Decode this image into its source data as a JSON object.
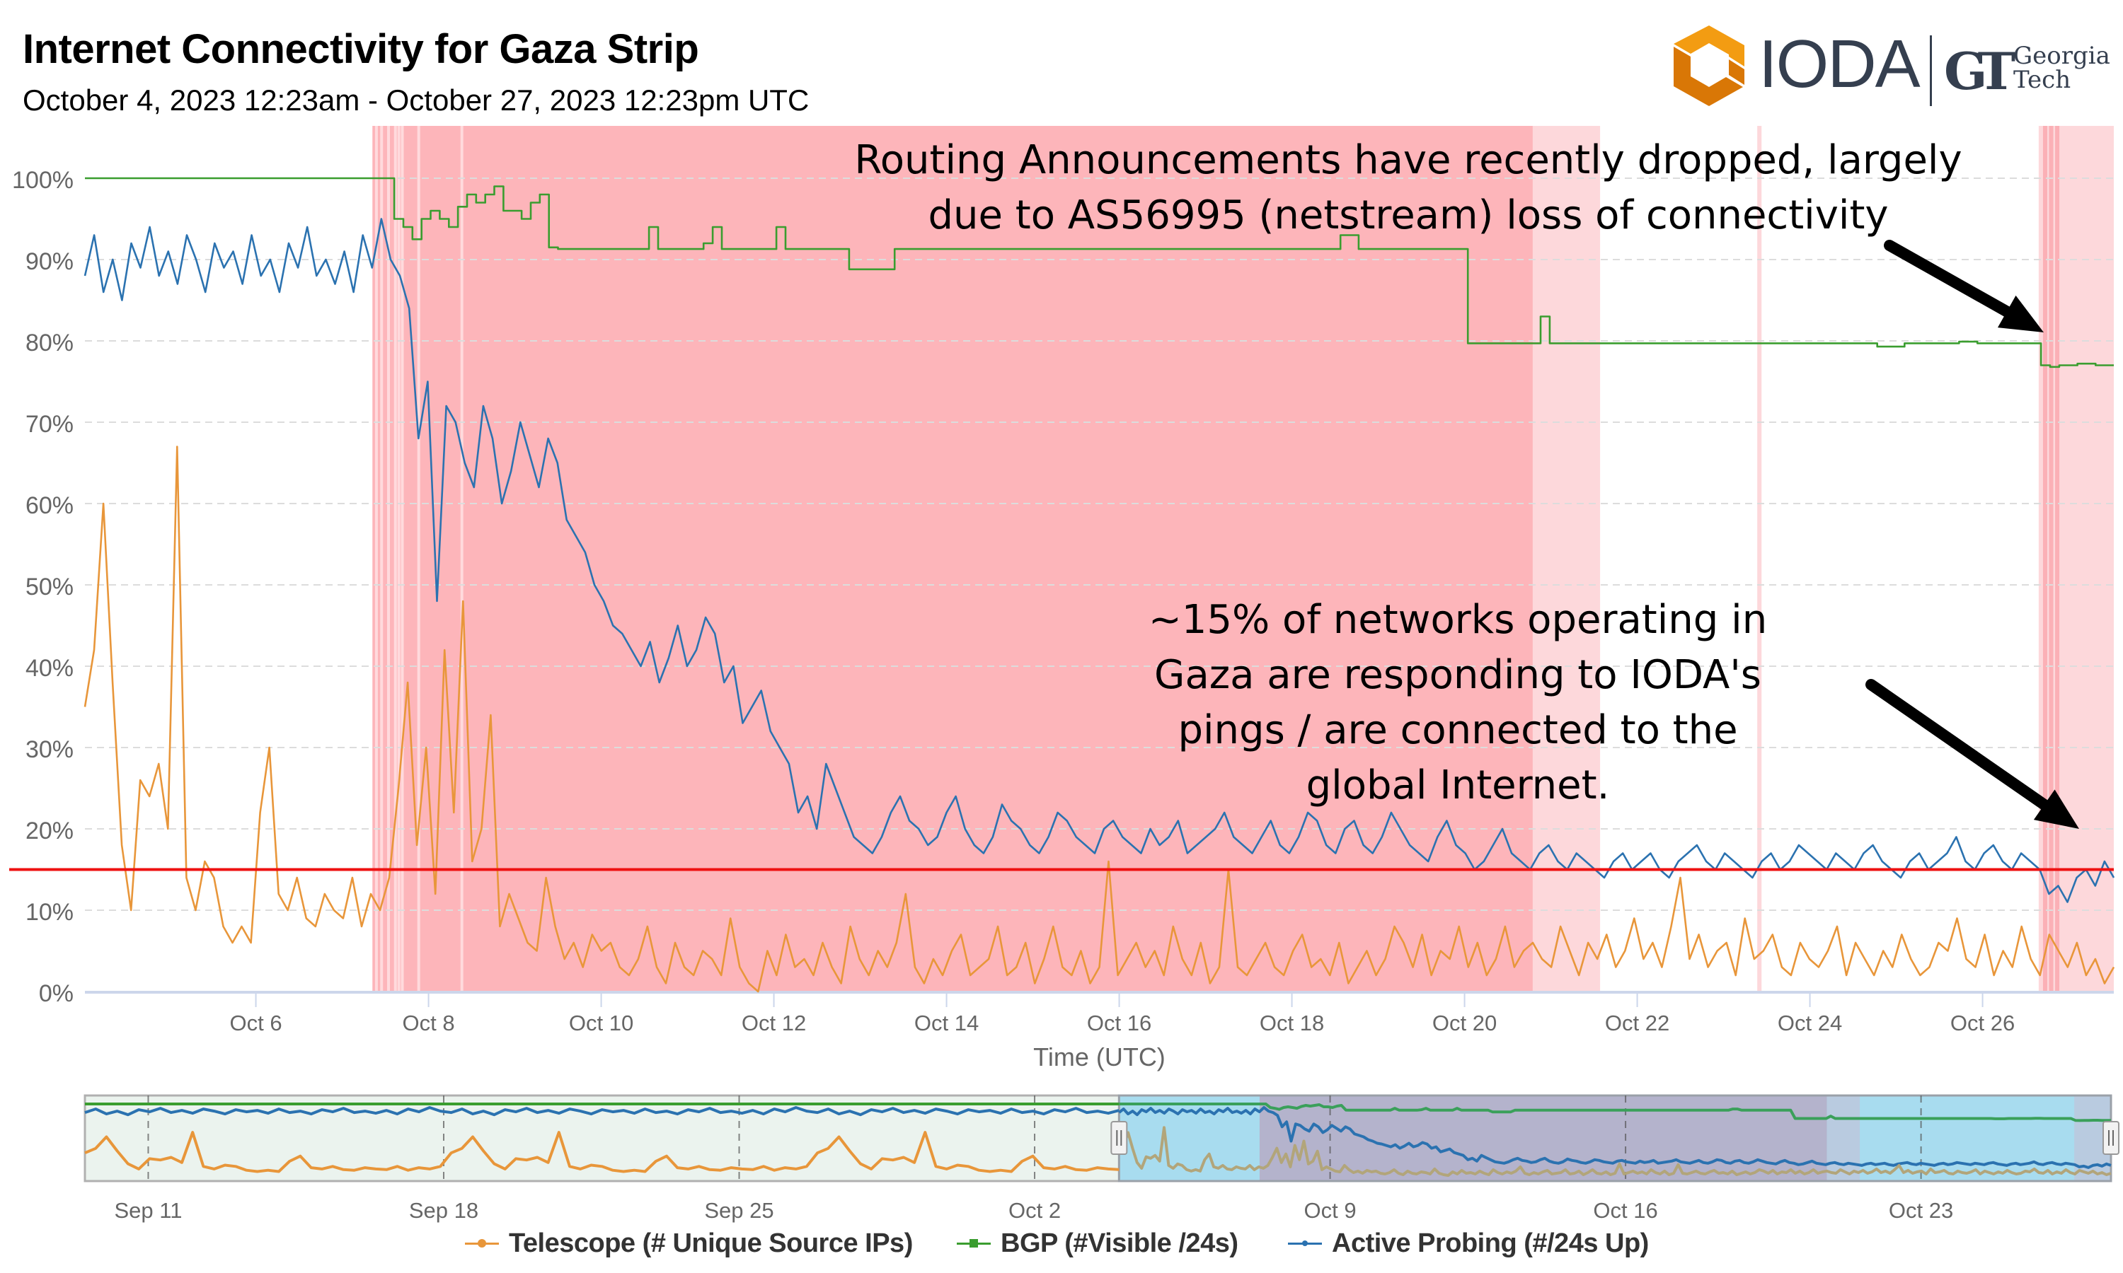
{
  "header": {
    "title": "Internet Connectivity for  Gaza Strip",
    "subtitle": "October 4, 2023 12:23am - October 27, 2023 12:23pm UTC"
  },
  "logo": {
    "ioda_text": "IODA",
    "gt_mark": "GT",
    "gt_line1": "Georgia",
    "gt_line2": "Tech",
    "ioda_colors": [
      "#f39c12",
      "#d97706"
    ],
    "text_color": "#353f4f"
  },
  "annotations": {
    "bgp_note_line1": "Routing Announcements have recently dropped, largely",
    "bgp_note_line2": "due to AS56995 (netstream) loss of connectivity",
    "probing_note_line1": "~15% of networks operating in",
    "probing_note_line2": "Gaza are responding to IODA's",
    "probing_note_line3": "pings / are connected to the",
    "probing_note_line4": "global Internet."
  },
  "legend": {
    "items": [
      {
        "label": "Telescope (# Unique Source IPs)",
        "color": "#e8963a"
      },
      {
        "label": "BGP (#Visible /24s)",
        "color": "#3a9d2f"
      },
      {
        "label": "Active Probing (#/24s Up)",
        "color": "#2b72b0"
      }
    ]
  },
  "chart_data": {
    "type": "line",
    "title": "Internet Connectivity for  Gaza Strip",
    "xlabel": "Time (UTC)",
    "ylabel": "",
    "x_unit": "days since October 4, 2023 00:23 UTC",
    "x_step_days": 0.25,
    "xlim": [
      0,
      23.5
    ],
    "ylim": [
      0,
      100
    ],
    "grid": true,
    "y_ticks": [
      "0%",
      "10%",
      "20%",
      "30%",
      "40%",
      "50%",
      "60%",
      "70%",
      "80%",
      "90%",
      "100%"
    ],
    "y_tick_values": [
      0,
      10,
      20,
      30,
      40,
      50,
      60,
      70,
      80,
      90,
      100
    ],
    "x_ticks": [
      "Oct 6",
      "Oct 8",
      "Oct 10",
      "Oct 12",
      "Oct 14",
      "Oct 16",
      "Oct 18",
      "Oct 20",
      "Oct 22",
      "Oct 24",
      "Oct 26"
    ],
    "x_tick_values": [
      1.98,
      3.98,
      5.98,
      7.98,
      9.98,
      11.98,
      13.98,
      15.98,
      17.98,
      19.98,
      21.98
    ],
    "reference_line": {
      "value": 15,
      "color": "#ee1111"
    },
    "outage_bands": [
      {
        "start": 3.33,
        "end": 16.77,
        "level": "critical"
      },
      {
        "start": 16.77,
        "end": 17.55,
        "level": "warning"
      },
      {
        "start": 19.37,
        "end": 19.42,
        "level": "warning"
      },
      {
        "start": 22.63,
        "end": 23.5,
        "level": "warning"
      }
    ],
    "band_colors": {
      "critical": "#fdb5ba",
      "warning": "#fdd8db"
    },
    "series": [
      {
        "name": "Telescope (# Unique Source IPs)",
        "color": "#e8963a",
        "values": [
          35,
          42,
          60,
          38,
          18,
          10,
          26,
          24,
          28,
          20,
          67,
          14,
          10,
          16,
          14,
          8,
          6,
          8,
          6,
          22,
          30,
          12,
          10,
          14,
          9,
          8,
          12,
          10,
          9,
          14,
          8,
          12,
          10,
          14,
          25,
          38,
          18,
          30,
          12,
          42,
          22,
          48,
          16,
          20,
          34,
          8,
          12,
          9,
          6,
          5,
          14,
          8,
          4,
          6,
          3,
          7,
          5,
          6,
          3,
          2,
          4,
          8,
          3,
          1,
          6,
          3,
          2,
          5,
          4,
          2,
          9,
          3,
          1,
          0,
          5,
          2,
          7,
          3,
          4,
          2,
          6,
          3,
          1,
          8,
          4,
          2,
          5,
          3,
          6,
          12,
          3,
          1,
          4,
          2,
          5,
          7,
          2,
          3,
          4,
          8,
          2,
          3,
          6,
          1,
          4,
          8,
          3,
          2,
          5,
          1,
          3,
          16,
          2,
          4,
          6,
          3,
          5,
          2,
          8,
          4,
          2,
          6,
          1,
          3,
          15,
          3,
          2,
          4,
          6,
          3,
          2,
          5,
          7,
          3,
          4,
          2,
          6,
          1,
          3,
          5,
          2,
          4,
          8,
          6,
          3,
          7,
          2,
          5,
          4,
          8,
          3,
          6,
          2,
          4,
          8,
          3,
          5,
          6,
          4,
          3,
          8,
          5,
          2,
          6,
          4,
          7,
          3,
          5,
          9,
          4,
          6,
          3,
          8,
          14,
          4,
          7,
          3,
          5,
          6,
          2,
          9,
          4,
          5,
          7,
          3,
          2,
          6,
          4,
          3,
          5,
          8,
          2,
          6,
          4,
          2,
          5,
          3,
          7,
          4,
          2,
          3,
          6,
          5,
          9,
          4,
          3,
          7,
          2,
          5,
          3,
          8,
          4,
          2,
          7,
          5,
          3,
          6,
          2,
          4,
          1,
          3
        ]
      },
      {
        "name": "BGP (#Visible /24s)",
        "color": "#3a9d2f",
        "values": [
          100,
          100,
          100,
          100,
          100,
          100,
          100,
          100,
          100,
          100,
          100,
          100,
          100,
          100,
          100,
          100,
          100,
          100,
          100,
          100,
          100,
          100,
          100,
          100,
          100,
          100,
          100,
          100,
          100,
          100,
          100,
          100,
          100,
          100,
          95,
          94,
          92.5,
          95,
          96,
          95,
          94,
          96.5,
          98,
          97,
          98,
          99,
          96,
          96,
          95,
          97,
          98,
          91.5,
          91.3,
          91.3,
          91.3,
          91.3,
          91.3,
          91.3,
          91.3,
          91.3,
          91.3,
          91.3,
          94,
          91.3,
          91.3,
          91.3,
          91.3,
          91.3,
          92,
          94,
          91.3,
          91.3,
          91.3,
          91.3,
          91.3,
          91.3,
          94,
          91.3,
          91.3,
          91.3,
          91.3,
          91.3,
          91.3,
          91.3,
          88.8,
          88.8,
          88.8,
          88.8,
          88.8,
          91.3,
          91.3,
          91.3,
          91.3,
          91.3,
          91.3,
          91.3,
          91.3,
          91.3,
          91.3,
          91.3,
          91.3,
          91.3,
          91.3,
          91.3,
          91.3,
          91.3,
          91.3,
          91.3,
          91.3,
          91.3,
          91.3,
          91.3,
          91.3,
          91.3,
          91.3,
          91.3,
          91.3,
          91.3,
          91.3,
          91.3,
          91.3,
          91.3,
          91.3,
          91.3,
          91.3,
          91.3,
          91.3,
          91.3,
          91.3,
          91.3,
          91.3,
          91.3,
          91.3,
          91.3,
          91.3,
          91.3,
          91.3,
          91.3,
          93,
          93,
          91.3,
          91.3,
          91.3,
          91.3,
          91.3,
          91.3,
          91.3,
          91.3,
          91.3,
          91.3,
          91.3,
          91.3,
          79.7,
          79.7,
          79.7,
          79.7,
          79.7,
          79.7,
          79.7,
          79.7,
          83,
          79.7,
          79.7,
          79.7,
          79.7,
          79.7,
          79.7,
          79.7,
          79.7,
          79.7,
          79.7,
          79.7,
          79.7,
          79.7,
          79.7,
          79.7,
          79.7,
          79.7,
          79.7,
          79.7,
          79.7,
          79.7,
          79.7,
          79.7,
          79.7,
          79.7,
          79.7,
          79.7,
          79.7,
          79.7,
          79.7,
          79.7,
          79.7,
          79.7,
          79.7,
          79.7,
          79.7,
          79.3,
          79.3,
          79.3,
          79.7,
          79.7,
          79.7,
          79.7,
          79.7,
          79.7,
          79.9,
          79.9,
          79.7,
          79.7,
          79.7,
          79.7,
          79.7,
          79.7,
          79.7,
          77,
          76.8,
          77,
          77,
          77.2,
          77.2,
          77,
          77,
          77
        ]
      },
      {
        "name": "Active Probing (#/24s Up)",
        "color": "#2b72b0",
        "values": [
          88,
          93,
          86,
          90,
          85,
          92,
          89,
          94,
          88,
          91,
          87,
          93,
          90,
          86,
          92,
          89,
          91,
          87,
          93,
          88,
          90,
          86,
          92,
          89,
          94,
          88,
          90,
          87,
          91,
          86,
          93,
          89,
          95,
          90,
          88,
          84,
          68,
          75,
          48,
          72,
          70,
          65,
          62,
          72,
          68,
          60,
          64,
          70,
          66,
          62,
          68,
          65,
          58,
          56,
          54,
          50,
          48,
          45,
          44,
          42,
          40,
          43,
          38,
          41,
          45,
          40,
          42,
          46,
          44,
          38,
          40,
          33,
          35,
          37,
          32,
          30,
          28,
          22,
          24,
          20,
          28,
          25,
          22,
          19,
          18,
          17,
          19,
          22,
          24,
          21,
          20,
          18,
          19,
          22,
          24,
          20,
          18,
          17,
          19,
          23,
          21,
          20,
          18,
          17,
          19,
          22,
          21,
          19,
          18,
          17,
          20,
          21,
          19,
          18,
          17,
          20,
          18,
          19,
          21,
          17,
          18,
          19,
          20,
          22,
          19,
          18,
          17,
          19,
          21,
          18,
          17,
          19,
          22,
          21,
          18,
          17,
          20,
          21,
          18,
          17,
          19,
          22,
          20,
          18,
          17,
          16,
          19,
          21,
          18,
          17,
          15,
          16,
          18,
          20,
          17,
          16,
          15,
          17,
          18,
          16,
          15,
          17,
          16,
          15,
          14,
          16,
          17,
          15,
          16,
          17,
          15,
          14,
          16,
          17,
          18,
          16,
          15,
          17,
          16,
          15,
          14,
          16,
          17,
          15,
          16,
          18,
          17,
          16,
          15,
          17,
          16,
          15,
          17,
          18,
          16,
          15,
          14,
          16,
          17,
          15,
          16,
          17,
          19,
          16,
          15,
          17,
          18,
          16,
          15,
          17,
          16,
          15,
          12,
          13,
          11,
          14,
          15,
          13,
          16,
          14
        ]
      }
    ]
  },
  "navigator": {
    "x_ticks": [
      "Sep 11",
      "Sep 18",
      "Sep 25",
      "Oct 2",
      "Oct 9",
      "Oct 16",
      "Oct 23"
    ],
    "selected_range": [
      "Oct 4",
      "Oct 27"
    ],
    "mask_color": "#a8dcef"
  }
}
